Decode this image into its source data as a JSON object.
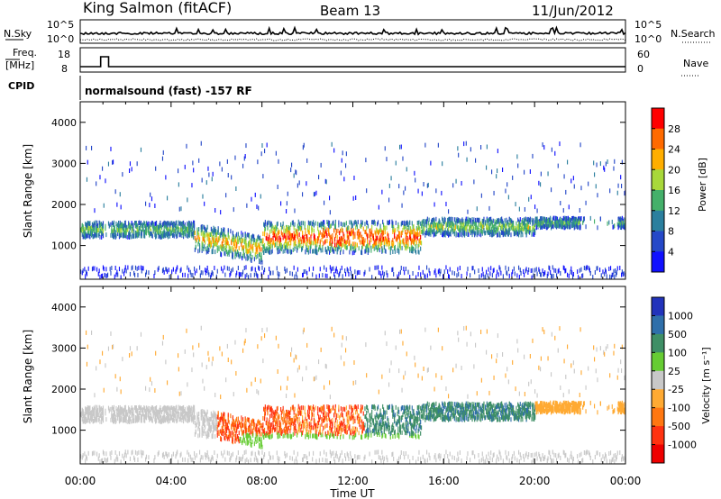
{
  "header": {
    "station": "King Salmon (fitACF)",
    "beam": "Beam 13",
    "date": "11/Jun/2012"
  },
  "noise_panel": {
    "left_label": "N.Sky",
    "left_ticks": [
      "10^5",
      "10^0"
    ],
    "right_ticks": [
      "10^5",
      "10^0"
    ],
    "right_label": "N.Search"
  },
  "freq_panel": {
    "label": "Freq.",
    "unit": "[MHz]",
    "left_ticks": [
      "18",
      "8"
    ],
    "right_ticks": [
      "60",
      "0"
    ],
    "right_label": "Nave"
  },
  "cpid": {
    "label": "CPID",
    "value": "normalsound (fast) -157 RF"
  },
  "chart_data": [
    {
      "type": "heatmap",
      "name": "power",
      "ylabel": "Slant Range [km]",
      "xlabel": "",
      "ylim": [
        180,
        4500
      ],
      "xlim": [
        0,
        24
      ],
      "yticks": [
        "4000",
        "3000",
        "2000",
        "1000"
      ],
      "colorbar": {
        "label": "Power [dB]",
        "ticks": [
          "28",
          "24",
          "20",
          "16",
          "12",
          "8",
          "4"
        ],
        "colors": [
          "#ff0000",
          "#ff6a00",
          "#ffae00",
          "#a8d83a",
          "#44b06a",
          "#2b7f9e",
          "#2548c8",
          "#1010ff"
        ]
      }
    },
    {
      "type": "heatmap",
      "name": "velocity",
      "ylabel": "Slant Range [km]",
      "xlabel": "Time UT",
      "ylim": [
        180,
        4500
      ],
      "xlim": [
        0,
        24
      ],
      "yticks": [
        "4000",
        "3000",
        "2000",
        "1000"
      ],
      "xticks": [
        "00:00",
        "04:00",
        "08:00",
        "12:00",
        "16:00",
        "20:00",
        "00:00"
      ],
      "colorbar": {
        "label": "Velocity [m s⁻¹]",
        "ticks": [
          "1000",
          "500",
          "100",
          "25",
          "-25",
          "-100",
          "-500",
          "-1000"
        ],
        "colors": [
          "#2233bb",
          "#2f6faa",
          "#3f8f66",
          "#66cc33",
          "#c8c8c8",
          "#ffaa33",
          "#ff7711",
          "#ff3311",
          "#ee0000"
        ]
      }
    }
  ]
}
